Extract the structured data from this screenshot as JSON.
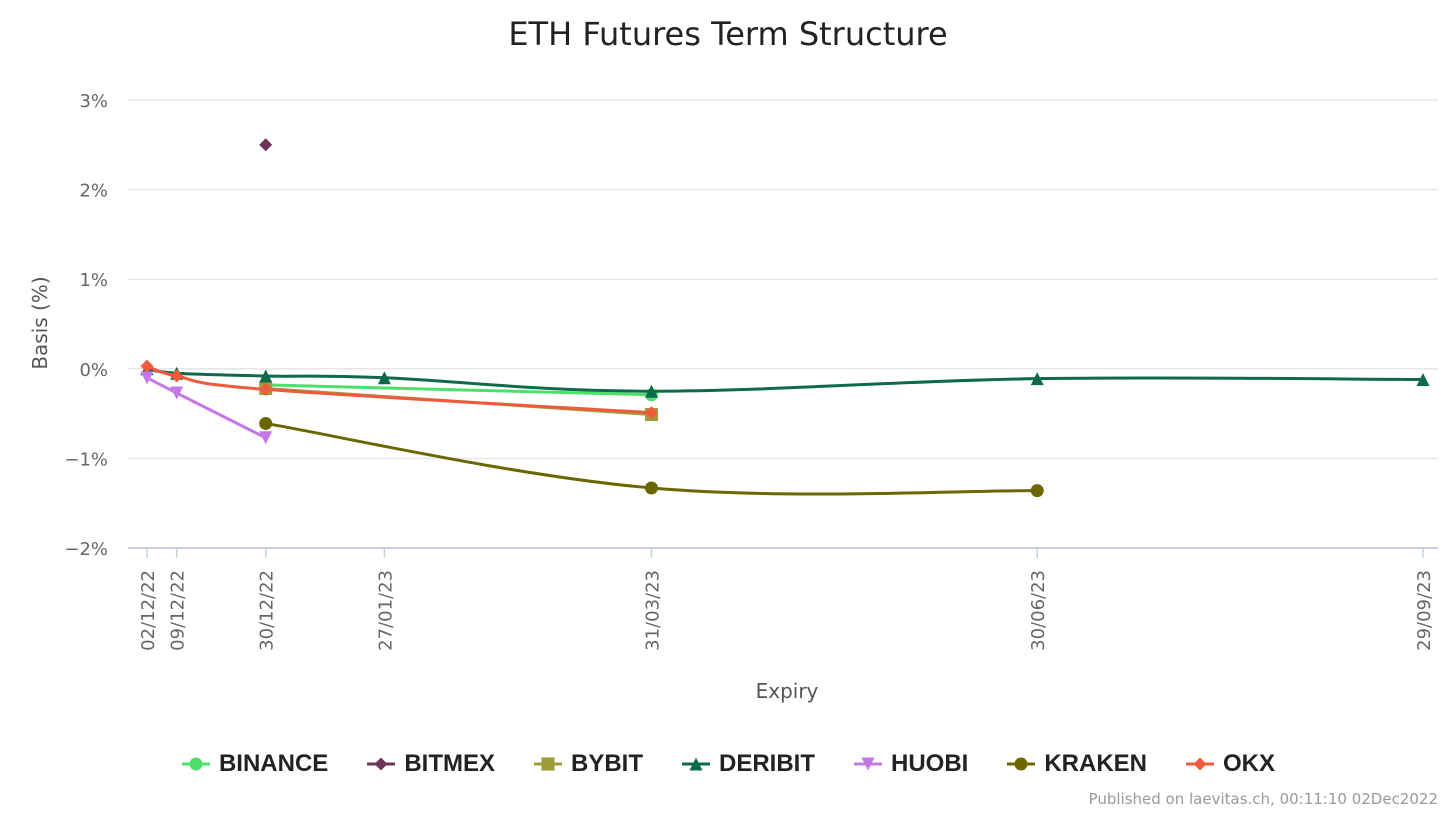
{
  "chart_data": {
    "type": "line",
    "title": "ETH Futures Term Structure",
    "xlabel": "Expiry",
    "ylabel": "Basis (%)",
    "y_ticks": [
      "3%",
      "2%",
      "1%",
      "0%",
      "−1%",
      "−2%"
    ],
    "y_tick_values": [
      3,
      2,
      1,
      0,
      -1,
      -2
    ],
    "ylim": [
      -2,
      3
    ],
    "x_categories": [
      "02/12/22",
      "09/12/22",
      "30/12/22",
      "27/01/23",
      "31/03/23",
      "30/06/23",
      "29/09/23"
    ],
    "x_days": [
      0,
      7,
      28,
      56,
      119,
      210,
      301
    ],
    "grid": true,
    "legend_position": "bottom",
    "series": [
      {
        "name": "BINANCE",
        "color": "#4ce06b",
        "marker": "circle",
        "points": [
          [
            "30/12/22",
            -0.18
          ],
          [
            "31/03/23",
            -0.29
          ]
        ]
      },
      {
        "name": "BITMEX",
        "color": "#6e3457",
        "marker": "diamond",
        "points": [
          [
            "30/12/22",
            2.5
          ]
        ]
      },
      {
        "name": "BYBIT",
        "color": "#9e9c3a",
        "marker": "square",
        "points": [
          [
            "30/12/22",
            -0.22
          ],
          [
            "31/03/23",
            -0.51
          ]
        ]
      },
      {
        "name": "DERIBIT",
        "color": "#0d6b4a",
        "marker": "triangle",
        "points": [
          [
            "02/12/22",
            0.0
          ],
          [
            "09/12/22",
            -0.05
          ],
          [
            "30/12/22",
            -0.08
          ],
          [
            "27/01/23",
            -0.1
          ],
          [
            "31/03/23",
            -0.25
          ],
          [
            "30/06/23",
            -0.11
          ],
          [
            "29/09/23",
            -0.12
          ]
        ]
      },
      {
        "name": "HUOBI",
        "color": "#c478e6",
        "marker": "triangle-down",
        "points": [
          [
            "02/12/22",
            -0.1
          ],
          [
            "09/12/22",
            -0.27
          ],
          [
            "30/12/22",
            -0.77
          ]
        ]
      },
      {
        "name": "KRAKEN",
        "color": "#6b6600",
        "marker": "circle",
        "points": [
          [
            "30/12/22",
            -0.61
          ],
          [
            "31/03/23",
            -1.33
          ],
          [
            "30/06/23",
            -1.36
          ]
        ]
      },
      {
        "name": "OKX",
        "color": "#f05a3c",
        "marker": "diamond",
        "points": [
          [
            "02/12/22",
            0.03
          ],
          [
            "09/12/22",
            -0.08
          ],
          [
            "30/12/22",
            -0.23
          ],
          [
            "31/03/23",
            -0.49
          ]
        ]
      }
    ]
  },
  "credit": "Published on laevitas.ch, 00:11:10 02Dec2022"
}
